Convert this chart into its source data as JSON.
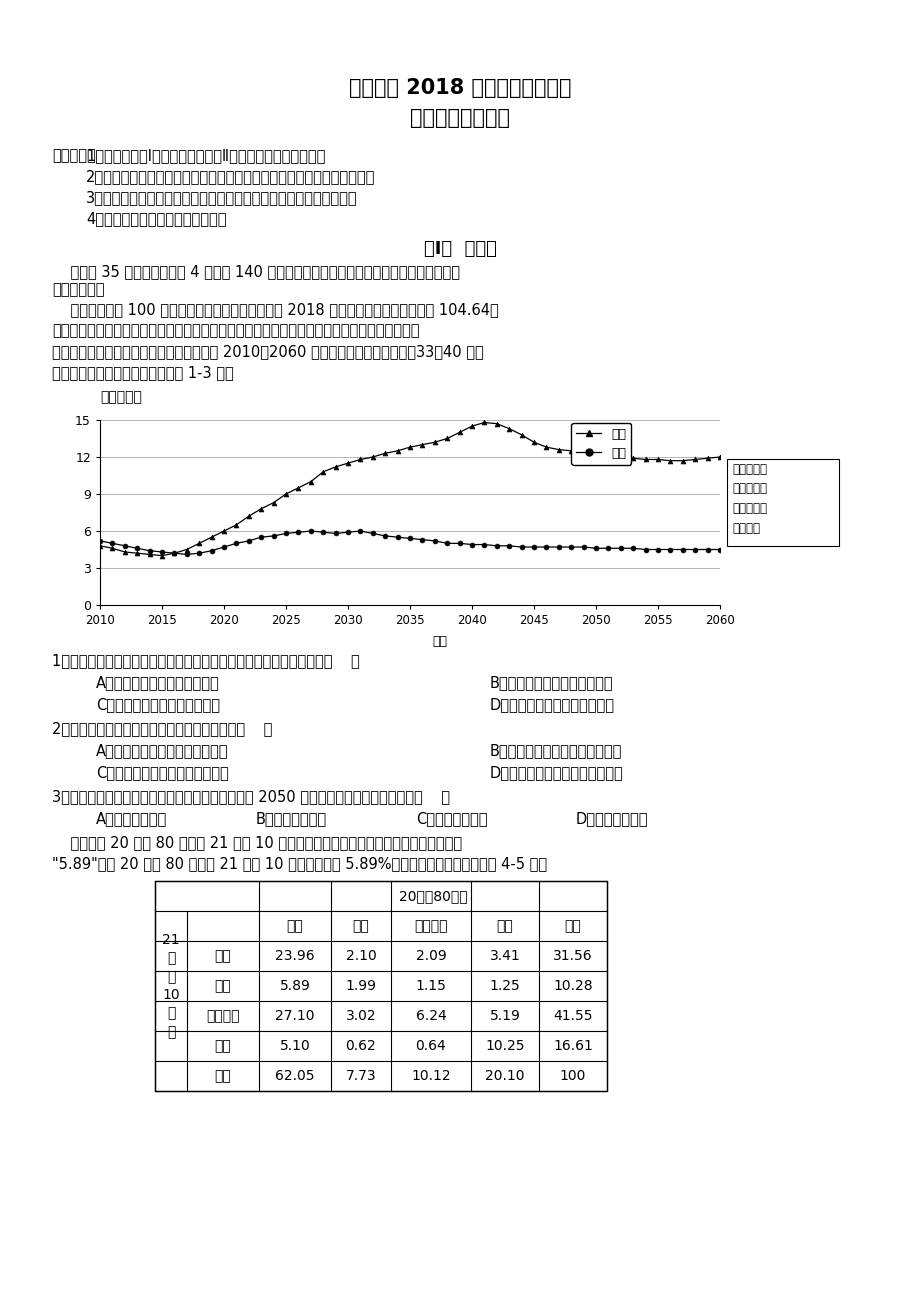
{
  "title_line1": "南充高中 2018 级高三第四次月考",
  "title_line2": "文科综合能力测试",
  "notice_title": "注意事项：",
  "notices": [
    "1．本试卷分第Ⅰ卷（选择题）和第Ⅱ卷（非选择题）两部分。",
    "2．答题前，考生必须将自己的姓名、准考证号填写在答题卡相应的位置。",
    "3．作答时，必须将答案写在答题卡上，写在本试卷及草稿纸上无效。",
    "4．考试结束后，只将答题卡交回。"
  ],
  "section_title": "第Ⅰ卷  选择题",
  "section_intro_1": "    本卷共 35 个小题，每小题 4 分，共 140 分。在每小题给出的四个选项中，只有一项是符合",
  "section_intro_2": "题目要求的。",
  "para1_lines": [
    "    性别比是指每 100 位女性所对应的男性数量，截至 2018 年末，我国总人口性别比为 104.64。",
    "专家指出，二孩政策的实施有利于平衡人口性别比。婚配性别比是指在初婚市场中，某年龄段可",
    "供选择的男性与女性人口数之比。下图示意 2010～2060 年我国城乡大龄未婚人口（33～40 岁）",
    "婚配性别比（含预测）。据此完成 1-3 题。"
  ],
  "chart_ylabel": "婚配性别比",
  "chart_xlabel": "年份",
  "chart_source": "资料来源：\n基于全国人\n口普查数据\n预测计算",
  "rural_label": "农村",
  "urban_label": "城镇",
  "years": [
    2010,
    2011,
    2012,
    2013,
    2014,
    2015,
    2016,
    2017,
    2018,
    2019,
    2020,
    2021,
    2022,
    2023,
    2024,
    2025,
    2026,
    2027,
    2028,
    2029,
    2030,
    2031,
    2032,
    2033,
    2034,
    2035,
    2036,
    2037,
    2038,
    2039,
    2040,
    2041,
    2042,
    2043,
    2044,
    2045,
    2046,
    2047,
    2048,
    2049,
    2050,
    2051,
    2052,
    2053,
    2054,
    2055,
    2056,
    2057,
    2058,
    2059,
    2060
  ],
  "rural_values": [
    4.8,
    4.6,
    4.3,
    4.2,
    4.1,
    4.0,
    4.2,
    4.5,
    5.0,
    5.5,
    6.0,
    6.5,
    7.2,
    7.8,
    8.3,
    9.0,
    9.5,
    10.0,
    10.8,
    11.2,
    11.5,
    11.8,
    12.0,
    12.3,
    12.5,
    12.8,
    13.0,
    13.2,
    13.5,
    14.0,
    14.5,
    14.8,
    14.7,
    14.3,
    13.8,
    13.2,
    12.8,
    12.6,
    12.5,
    12.3,
    12.2,
    12.1,
    12.0,
    11.9,
    11.8,
    11.8,
    11.7,
    11.7,
    11.8,
    11.9,
    12.0
  ],
  "urban_values": [
    5.2,
    5.0,
    4.8,
    4.6,
    4.4,
    4.3,
    4.2,
    4.1,
    4.2,
    4.4,
    4.7,
    5.0,
    5.2,
    5.5,
    5.6,
    5.8,
    5.9,
    6.0,
    5.9,
    5.8,
    5.9,
    6.0,
    5.8,
    5.6,
    5.5,
    5.4,
    5.3,
    5.2,
    5.0,
    5.0,
    4.9,
    4.9,
    4.8,
    4.8,
    4.7,
    4.7,
    4.7,
    4.7,
    4.7,
    4.7,
    4.6,
    4.6,
    4.6,
    4.6,
    4.5,
    4.5,
    4.5,
    4.5,
    4.5,
    4.5,
    4.5
  ],
  "yticks": [
    0,
    3,
    6,
    9,
    12,
    15
  ],
  "xticks": [
    2010,
    2015,
    2020,
    2025,
    2030,
    2035,
    2040,
    2045,
    2050,
    2055,
    2060
  ],
  "q1": "1．未来几十年，我国农村与城镇婚配性别比差异加大的原因最可能是（    ）",
  "q1a": "A．城镇大量未婚男性迁往农村",
  "q1b": "B．城镇大量未婚女性迁往农村",
  "q1c": "C．农村大量未婚女性迁往城镇",
  "q1d": "D．农村大量未婚男性迁往城镇",
  "q2": "2．为了缩小城乡婚配性别比差异，当前我国应（    ）",
  "q2a": "A．发展教育，普遍提高人口素质",
  "q2b": "B．振兴乡村，缩小城乡经济差距",
  "q2c": "C．鼓励生育，宣传男女平等思想",
  "q2d": "D．尊老爱幼，发扬中华优良传统",
  "q3": "3．我国农村和城镇大龄未婚人口婚配性别比大致从 2050 年前后开始下降的主要原因是（    ）",
  "q3a": "A．经济增速趋缓",
  "q3b": "B．社会福利完善",
  "q3c": "C．外来移民增多",
  "q3d": "D．生育政策影响",
  "table_intro1": "    读苏州市 20 世纪 80 年代到 21 世纪 10 年代的土地利用类型转移矩阵表（例：表中数据",
  "table_intro2": "\"5.89\"表示 20 世纪 80 年代到 21 世纪 10 年代期间，有 5.89%的耕地转变为林地），完成 4-5 题。",
  "table_header_top": "20世纪80年代",
  "table_col_headers": [
    "耕地",
    "林地",
    "建设用地",
    "水域",
    "合计"
  ],
  "table_row_headers": [
    "耕地",
    "林地",
    "建设用地",
    "水域",
    "合计"
  ],
  "table_row_group_chars": [
    "21",
    "世",
    "纪",
    "10",
    "年",
    "代"
  ],
  "table_data": [
    [
      "23.96",
      "2.10",
      "2.09",
      "3.41",
      "31.56"
    ],
    [
      "5.89",
      "1.99",
      "1.15",
      "1.25",
      "10.28"
    ],
    [
      "27.10",
      "3.02",
      "6.24",
      "5.19",
      "41.55"
    ],
    [
      "5.10",
      "0.62",
      "0.64",
      "10.25",
      "16.61"
    ],
    [
      "62.05",
      "7.73",
      "10.12",
      "20.10",
      "100"
    ]
  ],
  "background_color": "#ffffff",
  "text_color": "#000000"
}
